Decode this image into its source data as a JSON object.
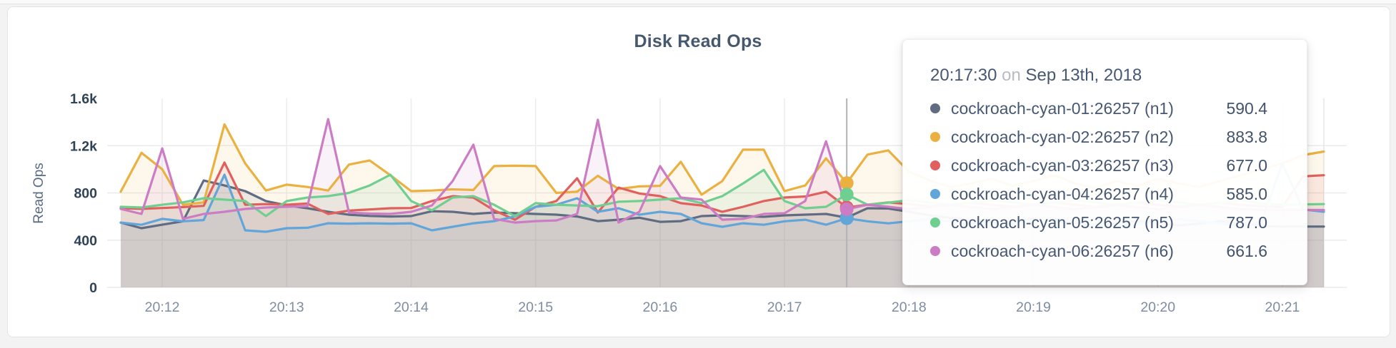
{
  "card": {
    "title": "Disk Read Ops"
  },
  "tooltip": {
    "time": "20:17:30",
    "connector": "on",
    "date": "Sep 13th, 2018",
    "rows": [
      {
        "name": "cockroach-cyan-01:26257 (n1)",
        "value": "590.4",
        "color": "#5f6c82"
      },
      {
        "name": "cockroach-cyan-02:26257 (n2)",
        "value": "883.8",
        "color": "#eab140"
      },
      {
        "name": "cockroach-cyan-03:26257 (n3)",
        "value": "677.0",
        "color": "#e0605d"
      },
      {
        "name": "cockroach-cyan-04:26257 (n4)",
        "value": "585.0",
        "color": "#61a5d9"
      },
      {
        "name": "cockroach-cyan-05:26257 (n5)",
        "value": "787.0",
        "color": "#6fcf90"
      },
      {
        "name": "cockroach-cyan-06:26257 (n6)",
        "value": "661.6",
        "color": "#cc7cc4"
      }
    ]
  },
  "chart_data": {
    "type": "line",
    "title": "Disk Read Ops",
    "xlabel": "",
    "ylabel": "Read Ops",
    "ylim": [
      0,
      1600
    ],
    "grid": true,
    "legend_position": "tooltip",
    "x_start": "20:11:40",
    "x_step_seconds": 10,
    "x_domain_seconds": [
      0,
      580
    ],
    "hover_index": 35,
    "hover_time": "20:17:30",
    "y_ticks": [
      {
        "label": "0",
        "value": 0
      },
      {
        "label": "400",
        "value": 400
      },
      {
        "label": "800",
        "value": 800
      },
      {
        "label": "1.2k",
        "value": 1200
      },
      {
        "label": "1.6k",
        "value": 1600
      }
    ],
    "x_ticks": [
      {
        "label": "20:12",
        "t": 20
      },
      {
        "label": "20:13",
        "t": 80
      },
      {
        "label": "20:14",
        "t": 140
      },
      {
        "label": "20:15",
        "t": 200
      },
      {
        "label": "20:16",
        "t": 260
      },
      {
        "label": "20:17",
        "t": 320
      },
      {
        "label": "20:18",
        "t": 380
      },
      {
        "label": "20:19",
        "t": 440
      },
      {
        "label": "20:20",
        "t": 500
      },
      {
        "label": "20:21",
        "t": 560
      }
    ],
    "series": [
      {
        "name": "cockroach-cyan-01:26257 (n1)",
        "color": "#5f6c82",
        "values": [
          549,
          501,
          531,
          560,
          905,
          863,
          815,
          731,
          694,
          670,
          640,
          615,
          605,
          600,
          604,
          645,
          640,
          622,
          634,
          628,
          622,
          616,
          600,
          561,
          573,
          590,
          555,
          561,
          604,
          610,
          604,
          598,
          610,
          616,
          622,
          590.4,
          670,
          668,
          640,
          610,
          590,
          570,
          550,
          562,
          580,
          560,
          545,
          525,
          545,
          562,
          545,
          525,
          540,
          560,
          545,
          520,
          515,
          515,
          515
        ]
      },
      {
        "name": "cockroach-cyan-02:26257 (n2)",
        "color": "#eab140",
        "values": [
          810,
          1140,
          1000,
          700,
          720,
          1380,
          1050,
          820,
          870,
          850,
          820,
          1040,
          1075,
          950,
          815,
          820,
          830,
          825,
          1027,
          1030,
          1027,
          800,
          810,
          945,
          833,
          855,
          860,
          1063,
          785,
          900,
          1166,
          1166,
          815,
          863,
          1093,
          883.8,
          1124,
          1160,
          980,
          905,
          850,
          880,
          920,
          860,
          900,
          950,
          880,
          840,
          900,
          860,
          920,
          880,
          850,
          900,
          950,
          1000,
          1050,
          1120,
          1150
        ]
      },
      {
        "name": "cockroach-cyan-03:26257 (n3)",
        "color": "#e0605d",
        "values": [
          670,
          665,
          672,
          680,
          690,
          1057,
          700,
          705,
          700,
          710,
          622,
          650,
          660,
          670,
          672,
          731,
          773,
          761,
          652,
          573,
          682,
          731,
          924,
          634,
          845,
          795,
          773,
          713,
          694,
          640,
          682,
          731,
          761,
          770,
          810,
          677,
          700,
          720,
          705,
          685,
          700,
          718,
          700,
          682,
          700,
          720,
          700,
          680,
          700,
          720,
          700,
          682,
          700,
          718,
          700,
          688,
          680,
          940,
          950
        ]
      },
      {
        "name": "cockroach-cyan-04:26257 (n4)",
        "color": "#61a5d9",
        "values": [
          549,
          530,
          580,
          560,
          570,
          954,
          483,
          471,
          501,
          505,
          543,
          540,
          543,
          540,
          543,
          483,
          513,
          543,
          561,
          600,
          682,
          700,
          755,
          640,
          670,
          615,
          640,
          622,
          543,
          513,
          543,
          530,
          560,
          573,
          531,
          585,
          560,
          542,
          560,
          578,
          560,
          540,
          522,
          540,
          560,
          578,
          560,
          540,
          522,
          540,
          560,
          578,
          560,
          540,
          522,
          560,
          1050,
          660,
          640
        ]
      },
      {
        "name": "cockroach-cyan-05:26257 (n5)",
        "color": "#6fcf90",
        "values": [
          682,
          676,
          700,
          720,
          755,
          743,
          731,
          604,
          731,
          761,
          773,
          800,
          863,
          954,
          731,
          652,
          761,
          773,
          700,
          604,
          713,
          700,
          694,
          688,
          725,
          731,
          743,
          755,
          713,
          773,
          880,
          995,
          731,
          670,
          682,
          787,
          700,
          718,
          738,
          720,
          700,
          718,
          738,
          720,
          700,
          718,
          738,
          720,
          700,
          718,
          738,
          720,
          700,
          718,
          738,
          710,
          700,
          703,
          705
        ]
      },
      {
        "name": "cockroach-cyan-06:26257 (n6)",
        "color": "#cc7cc4",
        "values": [
          664,
          622,
          1177,
          580,
          622,
          640,
          664,
          676,
          682,
          688,
          1425,
          634,
          625,
          622,
          640,
          694,
          900,
          1208,
          580,
          549,
          561,
          567,
          622,
          1419,
          549,
          640,
          1027,
          761,
          743,
          573,
          580,
          622,
          628,
          731,
          1237,
          661.6,
          700,
          682,
          662,
          680,
          698,
          680,
          662,
          680,
          698,
          680,
          662,
          680,
          698,
          680,
          662,
          680,
          698,
          680,
          662,
          655,
          655,
          655,
          655
        ]
      }
    ]
  }
}
